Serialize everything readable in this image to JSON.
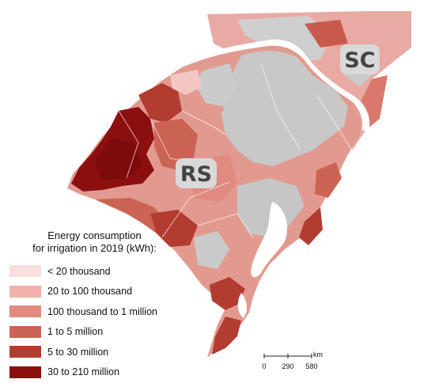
{
  "map": {
    "state_labels": {
      "rs": "RS",
      "sc": "SC"
    },
    "colors": {
      "no_data": "#c8c8c8",
      "water": "#ffffff",
      "border": "#ffffff"
    }
  },
  "legend": {
    "title_line1": "Energy consumption",
    "title_line2": "for irrigation in 2019 (kWh):",
    "items": [
      {
        "label": "< 20 thousand",
        "color": "#f9dede"
      },
      {
        "label": "20 to 100 thousand",
        "color": "#efb1aa"
      },
      {
        "label": "100 thousand to 1 million",
        "color": "#e08a80"
      },
      {
        "label": "1 to 5 million",
        "color": "#cc6456"
      },
      {
        "label": "5 to 30 million",
        "color": "#b23c30"
      },
      {
        "label": "30 to 210 million",
        "color": "#8c0f10"
      }
    ]
  },
  "scale_bar": {
    "unit": "km",
    "ticks": [
      "0",
      "290",
      "580"
    ]
  }
}
